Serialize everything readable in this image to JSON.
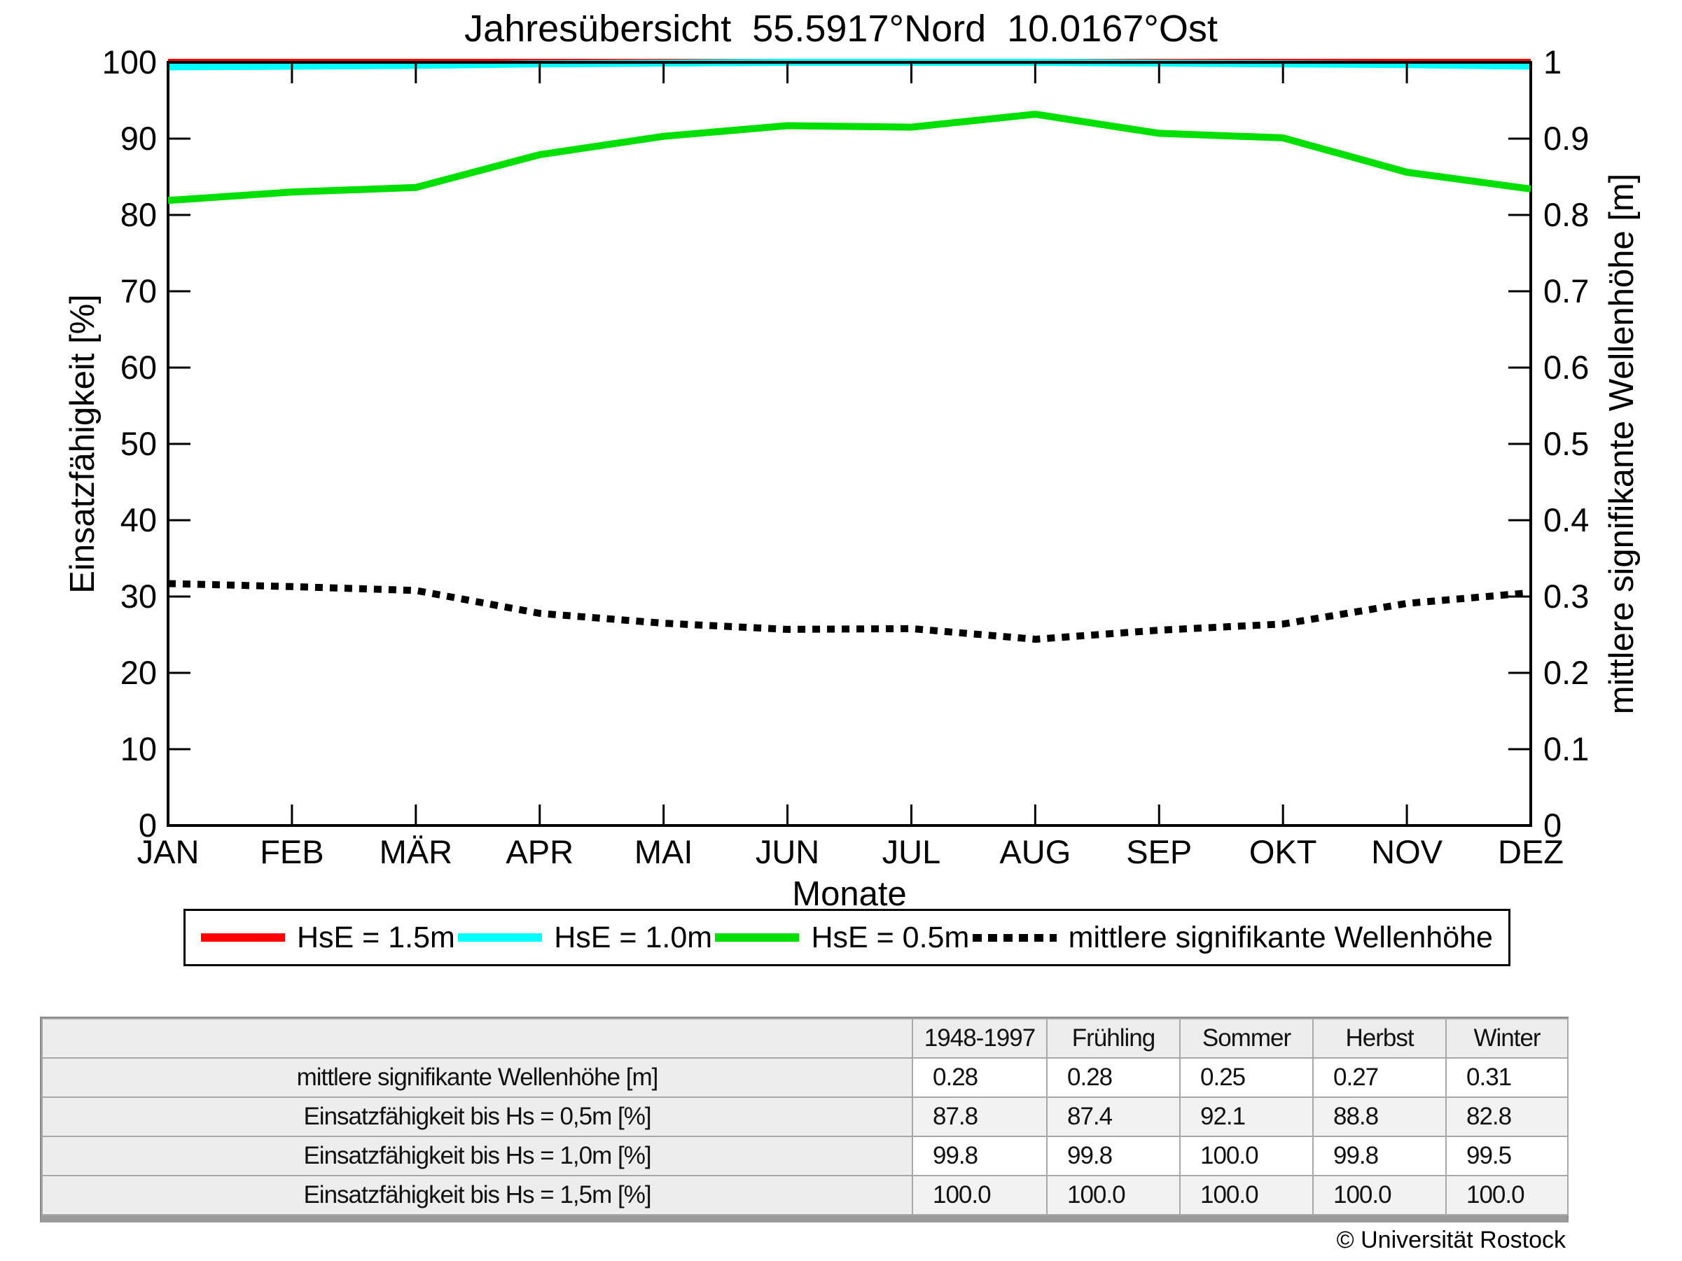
{
  "title": "Jahresübersicht  55.5917°Nord  10.0167°Ost",
  "axes": {
    "left_label": "Einsatzfähigkeit [%]",
    "right_label": "mittlere signifikante Wellenhöhe [m]",
    "x_label": "Monate",
    "left_ticks": [
      "0",
      "10",
      "20",
      "30",
      "40",
      "50",
      "60",
      "70",
      "80",
      "90",
      "100"
    ],
    "right_ticks": [
      "0",
      "0.1",
      "0.2",
      "0.3",
      "0.4",
      "0.5",
      "0.6",
      "0.7",
      "0.8",
      "0.9",
      "1"
    ],
    "months": [
      "JAN",
      "FEB",
      "MÄR",
      "APR",
      "MAI",
      "JUN",
      "JUL",
      "AUG",
      "SEP",
      "OKT",
      "NOV",
      "DEZ"
    ]
  },
  "legend": {
    "items": [
      {
        "label": "HsE = 1.5m",
        "color": "#ff0000",
        "line_style": "solid"
      },
      {
        "label": "HsE = 1.0m",
        "color": "#00ffff",
        "line_style": "solid"
      },
      {
        "label": "HsE = 0.5m",
        "color": "#00e000",
        "line_style": "solid"
      },
      {
        "label": "mittlere signifikante Wellenhöhe",
        "color": "#000000",
        "line_style": "dotted"
      }
    ]
  },
  "chart_data": {
    "type": "line",
    "title": "Jahresübersicht  55.5917°Nord  10.0167°Ost",
    "xlabel": "Monate",
    "ylabel_left": "Einsatzfähigkeit [%]",
    "ylabel_right": "mittlere signifikante Wellenhöhe [m]",
    "ylim_left": [
      0,
      100
    ],
    "ylim_right": [
      0,
      1
    ],
    "grid": false,
    "legend_position": "bottom",
    "categories": [
      "JAN",
      "FEB",
      "MÄR",
      "APR",
      "MAI",
      "JUN",
      "JUL",
      "AUG",
      "SEP",
      "OKT",
      "NOV",
      "DEZ"
    ],
    "series": [
      {
        "name": "HsE = 1.5m",
        "axis": "left",
        "color": "#ff0000",
        "style": "solid",
        "values": [
          100,
          100,
          100,
          100,
          100,
          100,
          100,
          100,
          100,
          100,
          100,
          100
        ]
      },
      {
        "name": "HsE = 1.0m",
        "axis": "left",
        "color": "#00ffff",
        "style": "solid",
        "values": [
          99.4,
          99.5,
          99.6,
          99.8,
          99.9,
          100,
          100,
          100,
          99.9,
          99.8,
          99.7,
          99.5
        ]
      },
      {
        "name": "HsE = 0.5m",
        "axis": "left",
        "color": "#00e000",
        "style": "solid",
        "values": [
          81.9,
          83.0,
          83.6,
          87.9,
          90.3,
          91.7,
          91.5,
          93.2,
          90.7,
          90.1,
          85.6,
          83.4
        ]
      },
      {
        "name": "mittlere signifikante Wellenhöhe",
        "axis": "right",
        "color": "#000000",
        "style": "dotted",
        "values": [
          0.317,
          0.313,
          0.308,
          0.278,
          0.265,
          0.257,
          0.258,
          0.244,
          0.256,
          0.264,
          0.291,
          0.305
        ]
      }
    ]
  },
  "table": {
    "columns": [
      "",
      "1948-1997",
      "Frühling",
      "Sommer",
      "Herbst",
      "Winter"
    ],
    "rows": [
      {
        "label": "mittlere signifikante Wellenhöhe [m]",
        "values": [
          "0.28",
          "0.28",
          "0.25",
          "0.27",
          "0.31"
        ]
      },
      {
        "label": "Einsatzfähigkeit bis Hs = 0,5m [%]",
        "values": [
          "87.8",
          "87.4",
          "92.1",
          "88.8",
          "82.8"
        ]
      },
      {
        "label": "Einsatzfähigkeit bis Hs = 1,0m [%]",
        "values": [
          "99.8",
          "99.8",
          "100.0",
          "99.8",
          "99.5"
        ]
      },
      {
        "label": "Einsatzfähigkeit bis Hs = 1,5m [%]",
        "values": [
          "100.0",
          "100.0",
          "100.0",
          "100.0",
          "100.0"
        ]
      }
    ]
  },
  "footer": {
    "copyright": "© Universität Rostock"
  }
}
